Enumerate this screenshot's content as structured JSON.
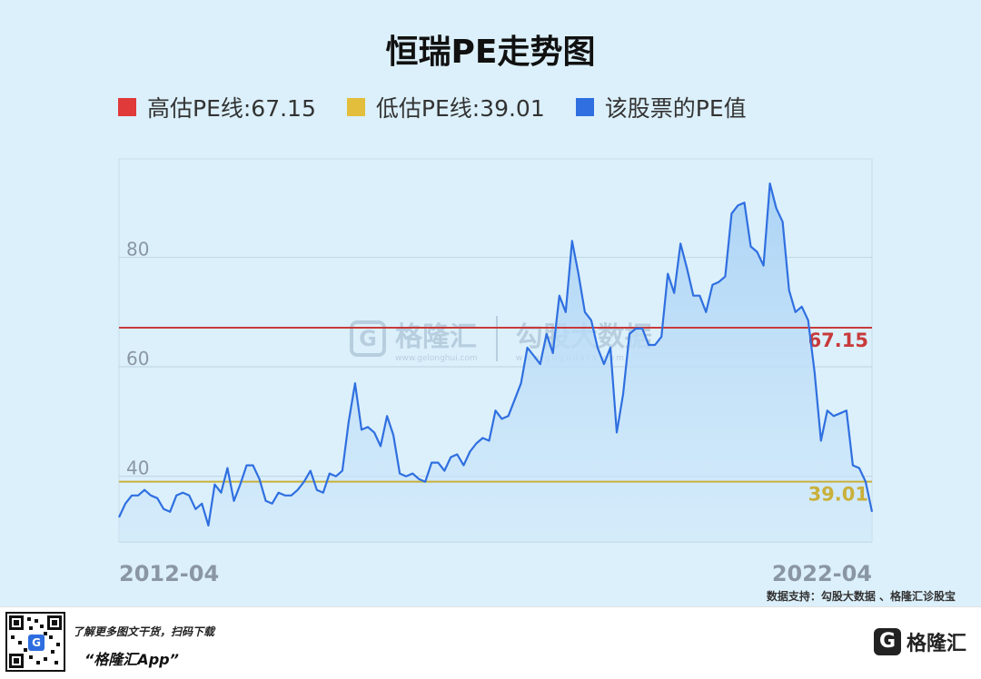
{
  "chart_data": {
    "type": "line",
    "title": "恒瑞PE走势图",
    "legend": [
      {
        "label": "高估PE线:67.15",
        "color": "#e03a3a"
      },
      {
        "label": "低估PE线:39.01",
        "color": "#e3be3c"
      },
      {
        "label": "该股票的PE值",
        "color": "#2f6fe0"
      }
    ],
    "x_tick_labels": [
      "2012-04",
      "2022-04"
    ],
    "y_ticks": [
      40,
      60,
      80
    ],
    "ylim": [
      28,
      98
    ],
    "grid": true,
    "reference_lines": [
      {
        "name": "高估PE线",
        "value": 67.15,
        "label": "67.15",
        "color": "#c83a3a"
      },
      {
        "name": "低估PE线",
        "value": 39.01,
        "label": "39.01",
        "color": "#c9b03a"
      }
    ],
    "series": [
      {
        "name": "该股票的PE值",
        "color": "#2f6fe0",
        "values": [
          32.5,
          35.0,
          36.5,
          36.5,
          37.5,
          36.5,
          36.0,
          34.0,
          33.5,
          36.5,
          37.0,
          36.5,
          34.0,
          35.0,
          31.0,
          38.5,
          37.0,
          41.5,
          35.5,
          38.5,
          42.0,
          42.0,
          39.5,
          35.5,
          35.0,
          37.0,
          36.5,
          36.5,
          37.5,
          39.0,
          41.0,
          37.5,
          37.0,
          40.5,
          40.0,
          41.0,
          50.0,
          57.0,
          48.5,
          49.0,
          48.0,
          45.5,
          51.0,
          47.5,
          40.5,
          40.0,
          40.5,
          39.5,
          39.0,
          42.5,
          42.5,
          41.0,
          43.5,
          44.0,
          42.0,
          44.5,
          46.0,
          47.0,
          46.5,
          52.0,
          50.5,
          51.0,
          54.0,
          57.0,
          63.5,
          62.0,
          60.5,
          66.0,
          62.5,
          73.0,
          70.0,
          83.0,
          77.0,
          70.0,
          68.5,
          63.5,
          60.5,
          63.5,
          48.0,
          55.0,
          66.0,
          67.0,
          67.0,
          64.0,
          64.0,
          65.5,
          77.0,
          73.5,
          82.5,
          78.0,
          73.0,
          73.0,
          70.0,
          75.0,
          75.5,
          76.5,
          88.0,
          89.5,
          90.0,
          82.0,
          81.0,
          78.5,
          93.5,
          89.0,
          86.5,
          74.0,
          70.0,
          71.0,
          68.5,
          59.0,
          46.5,
          52.0,
          51.0,
          51.5,
          52.0,
          42.0,
          41.5,
          39.0,
          33.5
        ]
      }
    ]
  },
  "source_text": "数据支持：勾股大数据 、格隆汇诊股宝",
  "watermark": {
    "brand": "格隆汇",
    "brand_sub": "www.gelonghui.com",
    "brand2": "勾股大数据",
    "brand2_sub": "www.gogudata.com"
  },
  "footer": {
    "tagline": "了解更多图文干货，扫码下载",
    "app_name": "“格隆汇App”",
    "brand": "格隆汇"
  }
}
